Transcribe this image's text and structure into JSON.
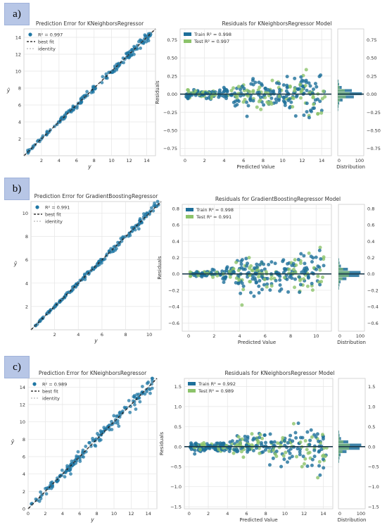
{
  "panels": [
    {
      "tag": "a)"
    },
    {
      "tag": "b)"
    },
    {
      "tag": "c)"
    }
  ],
  "chart_data": [
    {
      "type": "scatter",
      "title": "Prediction Error for KNeighborsRegressor",
      "xlabel": "y",
      "ylabel": "ŷ",
      "xlim": [
        0,
        15
      ],
      "ylim": [
        0,
        15
      ],
      "xticks": [
        "2",
        "4",
        "6",
        "8",
        "10",
        "12",
        "14"
      ],
      "yticks": [
        "2",
        "4",
        "6",
        "8",
        "10",
        "12",
        "14"
      ],
      "legend": [
        "R² = 0.997",
        "best fit",
        "identity"
      ],
      "legend_position": "top-left",
      "r2": 0.997,
      "series": [
        {
          "name": "R² = 0.997",
          "noise": 0.18,
          "xmax": 14.5
        }
      ]
    },
    {
      "type": "scatter",
      "title": "Residuals for KNeighborsRegressor Model",
      "xlabel": "Predicted Value",
      "ylabel": "Residuals",
      "xlim": [
        -0.5,
        15
      ],
      "ylim": [
        -0.85,
        0.9
      ],
      "xticks": [
        "0",
        "2",
        "4",
        "6",
        "8",
        "10",
        "12",
        "14"
      ],
      "yticks": [
        "−0.75",
        "−0.50",
        "−0.25",
        "0.00",
        "0.25",
        "0.50",
        "0.75"
      ],
      "dist_label": "Distribution",
      "dist_ticks": [
        "0",
        "100"
      ],
      "legend": [
        "Train R² = 0.998",
        "Test R² = 0.997"
      ],
      "legend_position": "top-left",
      "series": [
        {
          "name": "Train R² = 0.998"
        },
        {
          "name": "Test R² = 0.997"
        }
      ]
    },
    {
      "type": "scatter",
      "title": "Prediction Error for GradientBoostingRegressor",
      "xlabel": "y",
      "ylabel": "ŷ",
      "xlim": [
        0,
        11
      ],
      "ylim": [
        0,
        11
      ],
      "xticks": [
        "2",
        "4",
        "6",
        "8",
        "10"
      ],
      "yticks": [
        "2",
        "4",
        "6",
        "8",
        "10"
      ],
      "legend": [
        "R² = 0.991",
        "best fit",
        "identity"
      ],
      "legend_position": "top-left",
      "r2": 0.991,
      "series": [
        {
          "name": "R² = 0.991",
          "noise": 0.12,
          "xmax": 10.8
        }
      ]
    },
    {
      "type": "scatter",
      "title": "Residuals for GradientBoostingRegressor Model",
      "xlabel": "Predicted Value",
      "ylabel": "Residuals",
      "xlim": [
        -0.5,
        11.2
      ],
      "ylim": [
        -0.7,
        0.85
      ],
      "xticks": [
        "0",
        "2",
        "4",
        "6",
        "8",
        "10"
      ],
      "yticks": [
        "−0.6",
        "−0.4",
        "−0.2",
        "0.0",
        "0.2",
        "0.4",
        "0.6",
        "0.8"
      ],
      "dist_label": "Distribution",
      "dist_ticks": [
        "0",
        "100"
      ],
      "legend": [
        "Train R² = 0.998",
        "Test R² = 0.991"
      ],
      "legend_position": "top-left",
      "series": [
        {
          "name": "Train R² = 0.998"
        },
        {
          "name": "Test R² = 0.991"
        }
      ]
    },
    {
      "type": "scatter",
      "title": "Prediction Error for KNeighborsRegressor",
      "xlabel": "y",
      "ylabel": "ŷ",
      "xlim": [
        0,
        15
      ],
      "ylim": [
        0,
        15
      ],
      "xticks": [
        "0",
        "2",
        "4",
        "6",
        "8",
        "10",
        "12",
        "14"
      ],
      "yticks": [
        "0",
        "2",
        "4",
        "6",
        "8",
        "10",
        "12",
        "14"
      ],
      "legend": [
        "R² = 0.989",
        "best fit",
        "identity"
      ],
      "legend_position": "top-left",
      "r2": 0.989,
      "series": [
        {
          "name": "R² = 0.989",
          "noise": 0.35,
          "xmax": 14.5
        }
      ]
    },
    {
      "type": "scatter",
      "title": "Residuals for KNeighborsRegressor Model",
      "xlabel": "Predicted Value",
      "ylabel": "Residuals",
      "xlim": [
        -0.5,
        15
      ],
      "ylim": [
        -1.55,
        1.7
      ],
      "xticks": [
        "0",
        "2",
        "4",
        "6",
        "8",
        "10",
        "12",
        "14"
      ],
      "yticks": [
        "−1.5",
        "−1.0",
        "−0.5",
        "0.0",
        "0.5",
        "1.0",
        "1.5"
      ],
      "dist_label": "Distribution",
      "dist_ticks": [
        "0",
        "100"
      ],
      "legend": [
        "Train R² = 0.992",
        "Test R² = 0.989"
      ],
      "legend_position": "top-left",
      "series": [
        {
          "name": "Train R² = 0.992"
        },
        {
          "name": "Test R² = 0.989"
        }
      ]
    }
  ],
  "colors": {
    "train": "#1d6f9a",
    "test": "#8cc36a",
    "point": "#1f77a4",
    "grid": "#e5e5e5",
    "axis": "#cccccc",
    "tag_bg": "#b7c6e6"
  }
}
